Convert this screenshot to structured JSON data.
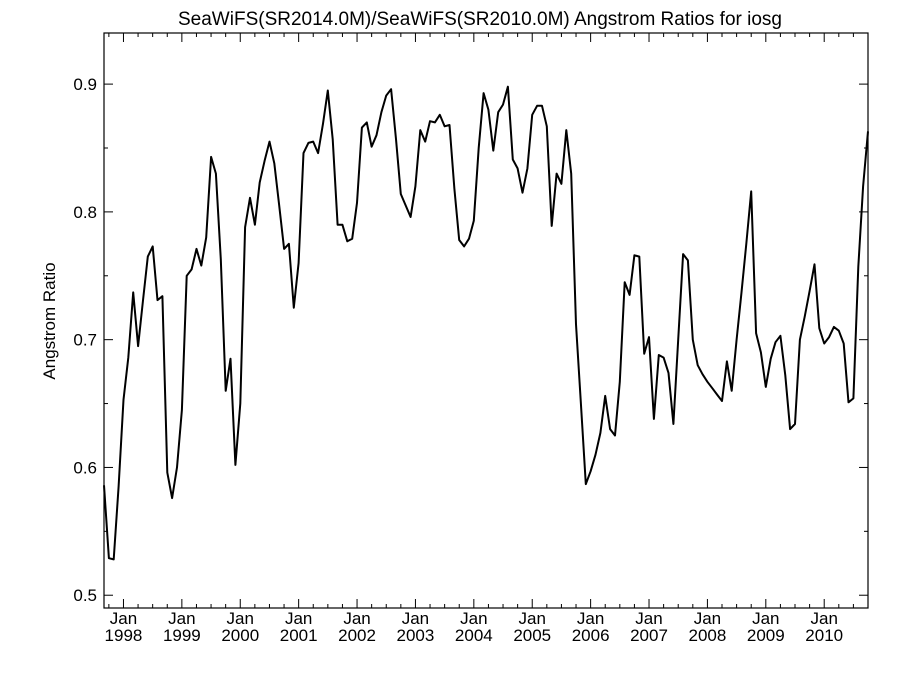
{
  "chart_data": {
    "type": "line",
    "title": "SeaWiFS(SR2014.0M)/SeaWiFS(SR2010.0M)  Angstrom Ratios for iosg",
    "xlabel": "",
    "ylabel": "Angstrom Ratio",
    "xlim": [
      "1997-09",
      "2010-10"
    ],
    "ylim": [
      0.49,
      0.94
    ],
    "yticks": [
      0.5,
      0.6,
      0.7,
      0.8,
      0.9
    ],
    "ytick_labels": [
      "0.5",
      "0.6",
      "0.7",
      "0.8",
      "0.9"
    ],
    "yminor_step": 0.05,
    "xticks": [
      {
        "date": "1998-01",
        "month": "Jan",
        "year": "1998"
      },
      {
        "date": "1999-01",
        "month": "Jan",
        "year": "1999"
      },
      {
        "date": "2000-01",
        "month": "Jan",
        "year": "2000"
      },
      {
        "date": "2001-01",
        "month": "Jan",
        "year": "2001"
      },
      {
        "date": "2002-01",
        "month": "Jan",
        "year": "2002"
      },
      {
        "date": "2003-01",
        "month": "Jan",
        "year": "2003"
      },
      {
        "date": "2004-01",
        "month": "Jan",
        "year": "2004"
      },
      {
        "date": "2005-01",
        "month": "Jan",
        "year": "2005"
      },
      {
        "date": "2006-01",
        "month": "Jan",
        "year": "2006"
      },
      {
        "date": "2007-01",
        "month": "Jan",
        "year": "2007"
      },
      {
        "date": "2008-01",
        "month": "Jan",
        "year": "2008"
      },
      {
        "date": "2009-01",
        "month": "Jan",
        "year": "2009"
      },
      {
        "date": "2010-01",
        "month": "Jan",
        "year": "2010"
      }
    ],
    "grid": false,
    "line_color": "#000000",
    "series": [
      {
        "x": [
          "1997-09",
          "1997-10",
          "1997-11",
          "1997-12",
          "1998-01",
          "1998-02",
          "1998-03",
          "1998-04",
          "1998-05",
          "1998-06",
          "1998-07",
          "1998-08",
          "1998-09",
          "1998-10",
          "1998-11",
          "1998-12",
          "1999-01",
          "1999-02",
          "1999-03",
          "1999-04",
          "1999-05",
          "1999-06",
          "1999-07",
          "1999-08",
          "1999-09",
          "1999-10",
          "1999-11",
          "1999-12",
          "2000-01",
          "2000-02",
          "2000-03",
          "2000-04",
          "2000-05",
          "2000-06",
          "2000-07",
          "2000-08",
          "2000-09",
          "2000-10",
          "2000-11",
          "2000-12",
          "2001-01",
          "2001-02",
          "2001-03",
          "2001-04",
          "2001-05",
          "2001-06",
          "2001-07",
          "2001-08",
          "2001-09",
          "2001-10",
          "2001-11",
          "2001-12",
          "2002-01",
          "2002-02",
          "2002-03",
          "2002-04",
          "2002-05",
          "2002-06",
          "2002-07",
          "2002-08",
          "2002-09",
          "2002-10",
          "2002-11",
          "2002-12",
          "2003-01",
          "2003-02",
          "2003-03",
          "2003-04",
          "2003-05",
          "2003-06",
          "2003-07",
          "2003-08",
          "2003-09",
          "2003-10",
          "2003-11",
          "2003-12",
          "2004-01",
          "2004-02",
          "2004-03",
          "2004-04",
          "2004-05",
          "2004-06",
          "2004-07",
          "2004-08",
          "2004-09",
          "2004-10",
          "2004-11",
          "2004-12",
          "2005-01",
          "2005-02",
          "2005-03",
          "2005-04",
          "2005-05",
          "2005-06",
          "2005-07",
          "2005-08",
          "2005-09",
          "2005-10",
          "2005-11",
          "2005-12",
          "2006-01",
          "2006-02",
          "2006-03",
          "2006-04",
          "2006-05",
          "2006-06",
          "2006-07",
          "2006-08",
          "2006-09",
          "2006-10",
          "2006-11",
          "2006-12",
          "2007-01",
          "2007-02",
          "2007-03",
          "2007-04",
          "2007-05",
          "2007-06",
          "2007-07",
          "2007-08",
          "2007-09",
          "2007-10",
          "2007-11",
          "2007-12",
          "2008-01",
          "2008-02",
          "2008-03",
          "2008-04",
          "2008-05",
          "2008-06",
          "2008-07",
          "2008-08",
          "2008-09",
          "2008-10",
          "2008-11",
          "2008-12",
          "2009-01",
          "2009-02",
          "2009-03",
          "2009-04",
          "2009-05",
          "2009-06",
          "2009-07",
          "2009-08",
          "2009-09",
          "2009-10",
          "2009-11",
          "2009-12",
          "2010-01",
          "2010-02",
          "2010-03",
          "2010-04",
          "2010-05",
          "2010-06",
          "2010-07",
          "2010-08",
          "2010-09",
          "2010-10"
        ],
        "values": [
          0.586,
          0.529,
          0.528,
          0.585,
          0.653,
          0.686,
          0.737,
          0.695,
          0.73,
          0.765,
          0.773,
          0.731,
          0.734,
          0.596,
          0.576,
          0.6,
          0.645,
          0.75,
          0.755,
          0.771,
          0.758,
          0.78,
          0.843,
          0.83,
          0.763,
          0.66,
          0.685,
          0.602,
          0.65,
          0.788,
          0.811,
          0.79,
          0.823,
          0.84,
          0.855,
          0.838,
          0.805,
          0.771,
          0.775,
          0.725,
          0.76,
          0.846,
          0.854,
          0.855,
          0.846,
          0.869,
          0.895,
          0.857,
          0.79,
          0.79,
          0.777,
          0.779,
          0.807,
          0.866,
          0.87,
          0.851,
          0.86,
          0.878,
          0.891,
          0.896,
          0.857,
          0.814,
          0.805,
          0.796,
          0.82,
          0.864,
          0.855,
          0.871,
          0.87,
          0.876,
          0.867,
          0.868,
          0.818,
          0.778,
          0.773,
          0.779,
          0.793,
          0.85,
          0.893,
          0.88,
          0.848,
          0.878,
          0.884,
          0.898,
          0.841,
          0.834,
          0.815,
          0.834,
          0.876,
          0.883,
          0.883,
          0.867,
          0.789,
          0.83,
          0.822,
          0.864,
          0.83,
          0.712,
          0.65,
          0.587,
          0.597,
          0.61,
          0.627,
          0.656,
          0.63,
          0.625,
          0.667,
          0.745,
          0.735,
          0.766,
          0.765,
          0.689,
          0.702,
          0.638,
          0.688,
          0.686,
          0.674,
          0.634,
          0.7,
          0.767,
          0.762,
          0.7,
          0.68,
          0.673,
          0.667,
          0.662,
          0.657,
          0.652,
          0.683,
          0.66,
          0.7,
          0.737,
          0.775,
          0.816,
          0.705,
          0.69,
          0.663,
          0.685,
          0.698,
          0.703,
          0.672,
          0.63,
          0.634,
          0.7,
          0.718,
          0.738,
          0.759,
          0.709,
          0.697,
          0.702,
          0.71,
          0.707,
          0.697,
          0.651,
          0.654,
          0.757,
          0.82,
          0.863
        ]
      }
    ]
  }
}
